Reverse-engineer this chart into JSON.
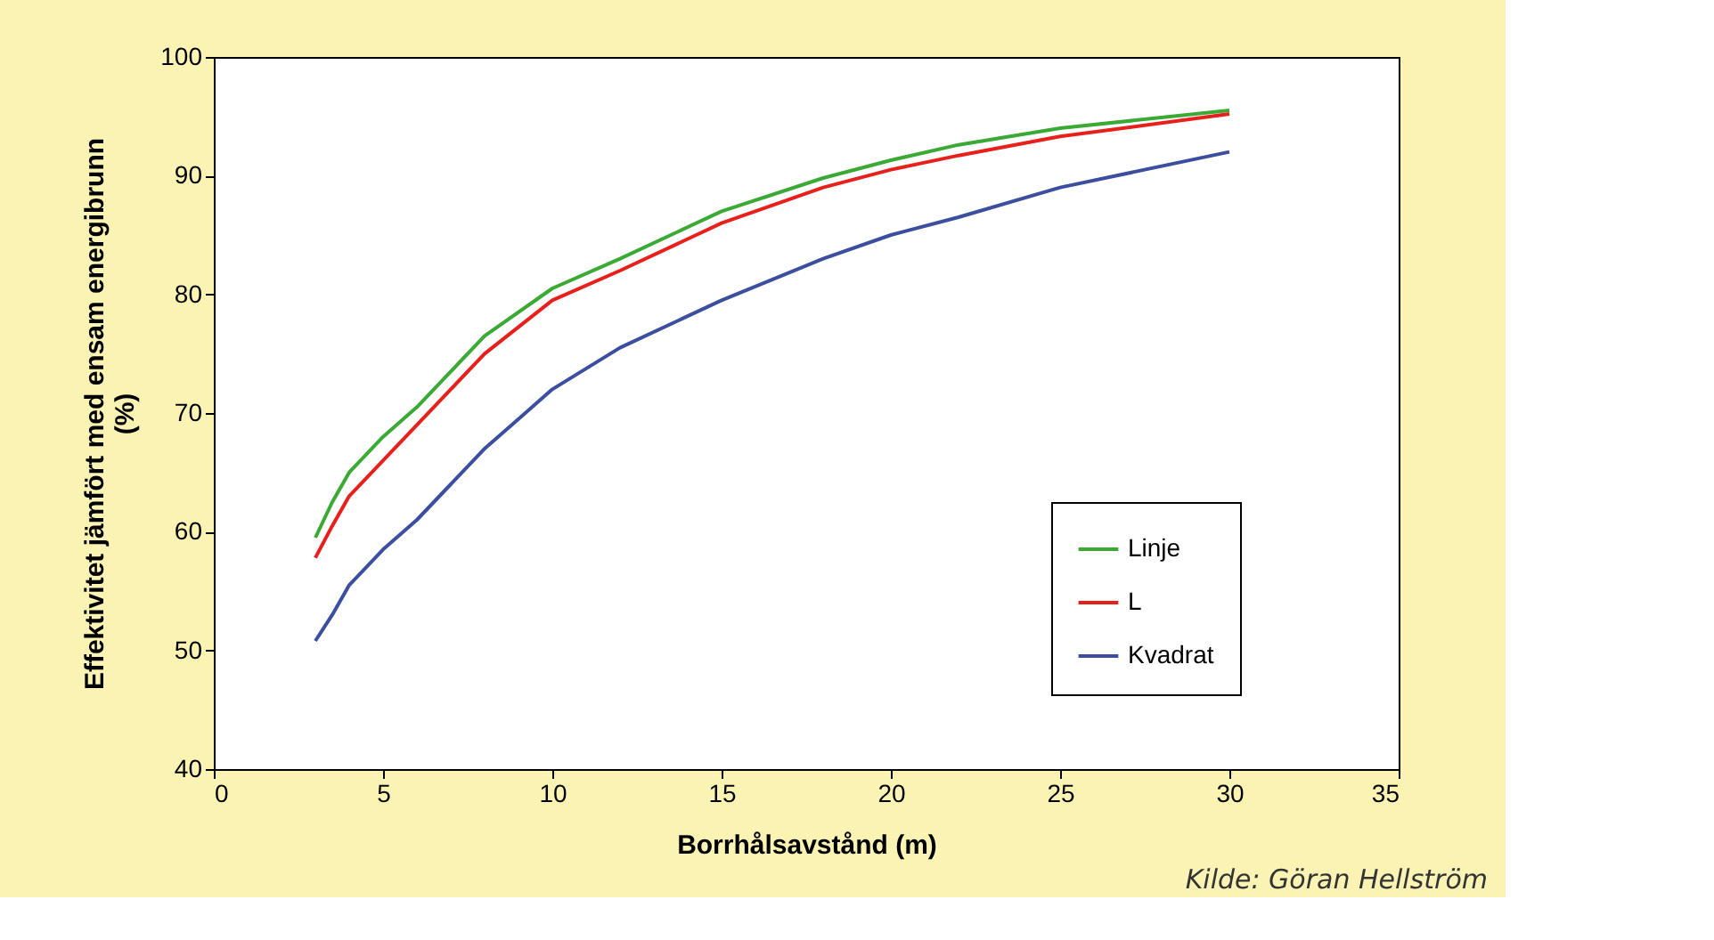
{
  "chart_data": {
    "type": "line",
    "xlabel": "Borrhålsavstånd (m)",
    "ylabel": "Effektivitet jämfört med ensam energibrunn\n(%)",
    "xlim": [
      0,
      35
    ],
    "xticks": [
      0,
      5,
      10,
      15,
      20,
      25,
      30,
      35
    ],
    "ylim": [
      40,
      100
    ],
    "yticks": [
      40,
      50,
      60,
      70,
      80,
      90,
      100
    ],
    "grid": false,
    "legend": "bottom right",
    "marker": "none",
    "line_style": "solid",
    "series": [
      {
        "name": "Linje",
        "color": "#3aaa35",
        "x": [
          3,
          3.5,
          4,
          5,
          6,
          7,
          8,
          10,
          12,
          15,
          18,
          20,
          22,
          25,
          30
        ],
        "values": [
          59.5,
          62.5,
          65,
          68,
          70.5,
          73.5,
          76.5,
          80.5,
          83,
          87,
          89.8,
          91.3,
          92.6,
          94,
          95.5
        ]
      },
      {
        "name": "L",
        "color": "#e8201c",
        "x": [
          3,
          3.5,
          4,
          5,
          6,
          7,
          8,
          10,
          12,
          15,
          18,
          20,
          22,
          25,
          30
        ],
        "values": [
          57.8,
          60.5,
          63,
          66,
          69,
          72,
          75,
          79.5,
          82,
          86,
          89,
          90.5,
          91.7,
          93.3,
          95.2
        ]
      },
      {
        "name": "Kvadrat",
        "color": "#3b4ea0",
        "x": [
          3,
          3.5,
          4,
          5,
          6,
          7,
          8,
          9,
          10,
          12,
          15,
          18,
          20,
          22,
          25,
          30
        ],
        "values": [
          50.8,
          53,
          55.5,
          58.5,
          61,
          64,
          67,
          69.5,
          72,
          75.5,
          79.5,
          83,
          85,
          86.5,
          89,
          92
        ]
      }
    ],
    "annotations": [
      "Kilde: Göran Hellström"
    ]
  }
}
